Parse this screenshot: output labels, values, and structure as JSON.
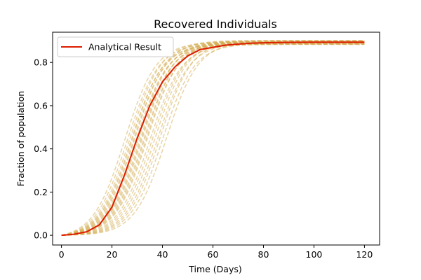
{
  "chart_data": {
    "type": "line",
    "title": "Recovered Individuals",
    "xlabel": "Time (Days)",
    "ylabel": "Fraction of population",
    "xlim": [
      -3.5,
      126
    ],
    "ylim": [
      -0.045,
      0.94
    ],
    "xticks": [
      0,
      20,
      40,
      60,
      80,
      100,
      120
    ],
    "yticks": [
      0.0,
      0.2,
      0.4,
      0.6,
      0.8
    ],
    "ytick_labels": [
      "0.0",
      "0.2",
      "0.4",
      "0.6",
      "0.8"
    ],
    "legend": {
      "position": "top-left",
      "entries": [
        "Analytical Result"
      ]
    },
    "grid": false,
    "colors": {
      "analytical": "#dd1c00",
      "simulation": "#d4ab50"
    },
    "series": [
      {
        "name": "Analytical Result",
        "x": [
          0,
          5,
          10,
          15,
          20,
          25,
          30,
          35,
          40,
          45,
          50,
          55,
          60,
          65,
          70,
          75,
          80,
          90,
          100,
          110,
          120
        ],
        "y": [
          0.0,
          0.005,
          0.016,
          0.048,
          0.13,
          0.28,
          0.45,
          0.6,
          0.71,
          0.78,
          0.83,
          0.86,
          0.87,
          0.88,
          0.885,
          0.889,
          0.891,
          0.893,
          0.894,
          0.894,
          0.894
        ]
      }
    ],
    "simulation_runs": {
      "style": "dashed",
      "count": 24,
      "x": [
        0,
        5,
        10,
        15,
        20,
        25,
        30,
        35,
        40,
        45,
        50,
        55,
        60,
        65,
        70,
        75,
        80,
        90,
        100,
        110,
        120
      ],
      "midpoints": [
        25,
        26,
        27,
        27.5,
        28,
        28.5,
        29,
        29.5,
        30,
        30.5,
        31,
        31.5,
        32,
        32.5,
        33,
        33.5,
        34,
        35,
        36,
        37,
        38,
        39,
        40,
        41.5
      ],
      "plateaus": [
        0.894,
        0.888,
        0.899,
        0.884,
        0.896,
        0.89,
        0.902,
        0.886,
        0.893,
        0.897,
        0.885,
        0.891,
        0.9,
        0.887,
        0.895,
        0.889,
        0.898,
        0.883,
        0.892,
        0.896,
        0.888,
        0.901,
        0.886,
        0.894
      ]
    }
  }
}
